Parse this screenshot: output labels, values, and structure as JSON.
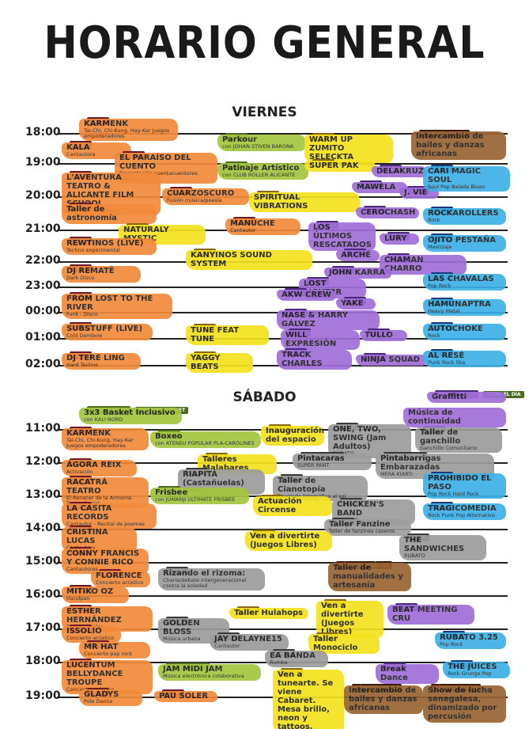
{
  "header": {
    "title": "HORARIO GENERAL"
  },
  "days": [
    {
      "name": "VIERNES",
      "hours": [
        "18:00",
        "19:00",
        "20:00",
        "21:00",
        "22:00",
        "23:00",
        "00:00",
        "01:00",
        "02:00"
      ],
      "events": [
        {
          "time": "17:30",
          "title": "KARMENK",
          "subtitle": "Tai-Chi, Chi-Kung, Hay-Kar Juegos empoderadores"
        },
        {
          "time": "18:00",
          "title": "KALA",
          "subtitle": "Cantautora"
        },
        {
          "time": "18:30",
          "title": "EL PARAÍSO DEL CUENTO",
          "subtitle": "Presentación cuentacuentores: Panocha"
        },
        {
          "time": "19:00",
          "title": "L'AVENTURA TEATRO & ALICANTE FILM SCHOOL",
          "subtitle": "Improvisación teatral"
        },
        {
          "time": "20:00",
          "title": "Taller de astronomía"
        },
        {
          "time": "19:30",
          "title": "CUARZOSCURO",
          "subtitle": "Fusión música/poesía"
        },
        {
          "time": "18:00",
          "title": "Parkour",
          "subtitle": "con JOHAN STIVEN BARONA"
        },
        {
          "time": "18:30",
          "title": "Patinaje Artístico",
          "subtitle": "con CLUB ROLLER ALICANTE"
        },
        {
          "time": "18:00",
          "title": "WARM UP ZUMITO SELECKTA"
        },
        {
          "time": "18:30",
          "title": "SUPER PAK"
        },
        {
          "time": "19:30",
          "title": "SPIRITUAL VIBRATIONS"
        },
        {
          "time": "VIERNES TARDE",
          "title": "Intercambio de bailes y danzas africanas"
        },
        {
          "time": "19:00",
          "title": "DELAKRUZ"
        },
        {
          "time": "19:25",
          "title": "MAWELA"
        },
        {
          "time": "19:30",
          "title": "J. VIE"
        },
        {
          "time": "19:00",
          "title": "CARI MAGIC SOUL",
          "subtitle": "Soul Pop Balada Blues"
        },
        {
          "time": "20:15",
          "title": "MANUCHE",
          "subtitle": "Cantautor"
        },
        {
          "time": "20:30",
          "title": "NATURALY MYSTIC"
        },
        {
          "time": "20:15",
          "title": "CEROCHASH"
        },
        {
          "time": "20:40",
          "title": "LOS ÚLTIMOS RESCATADOS"
        },
        {
          "time": "20:00",
          "title": "ROCKAROLLERS",
          "subtitle": "Rock"
        },
        {
          "time": "21:00",
          "title": "LURY"
        },
        {
          "time": "21:00",
          "title": "OJITO PESTAÑA",
          "subtitle": "Mestizaje"
        },
        {
          "time": "21:00",
          "title": "REWTINOS (LIVE)",
          "subtitle": "Techno experimental"
        },
        {
          "time": "21:30",
          "title": "KANYINOS SOUND SYSTEM"
        },
        {
          "time": "21:20",
          "title": "ARCHÉ"
        },
        {
          "time": "21:45",
          "title": "CHAMAN CHARRO"
        },
        {
          "time": "22:00",
          "title": "DJ REMATË",
          "subtitle": "Dark Disco"
        },
        {
          "time": "22:10",
          "title": "JOHN KARRA"
        },
        {
          "time": "22:00",
          "title": "LAS CHAVALAS",
          "subtitle": "Pop Rock"
        },
        {
          "time": "22:35",
          "title": "LOST LIGHT3R"
        },
        {
          "time": "23:00",
          "title": "FROM LOST TO THE RIVER",
          "subtitle": "Funk - Disco"
        },
        {
          "time": "23:00",
          "title": "AKW CREW"
        },
        {
          "time": "23:25",
          "title": "YAKE"
        },
        {
          "time": "23:00",
          "title": "HAMUNAPTRA",
          "subtitle": "Heavy Metal"
        },
        {
          "time": "23:50",
          "title": "NASE & HARRY GÁLVEZ"
        },
        {
          "time": "00:30",
          "title": "SUBSTUFF (LIVE)",
          "subtitle": "Cold Dembow"
        },
        {
          "time": "00:30",
          "title": "TUNE FEAT TUNE"
        },
        {
          "time": "00:25",
          "title": "WILL EXPRESIÓN"
        },
        {
          "time": "00:25",
          "title": "TULLO"
        },
        {
          "time": "00:00",
          "title": "AUTOCHOKE",
          "subtitle": "Rock"
        },
        {
          "time": "01:30",
          "title": "DJ TERE LING",
          "subtitle": "Hard Techno"
        },
        {
          "time": "01:30",
          "title": "YAGGY BEATS"
        },
        {
          "time": "01:05",
          "title": "TRACK CHARLES"
        },
        {
          "time": "01:15",
          "title": "NINJA SQUAD"
        },
        {
          "time": "01:00",
          "title": "AL RESÉ",
          "subtitle": "Punk Rock Ska"
        }
      ]
    },
    {
      "name": "SÁBADO",
      "hours": [
        "11:00",
        "12:00",
        "13:00",
        "14:00",
        "15:00",
        "16:00",
        "17:00",
        "18:00",
        "19:00"
      ],
      "events": [
        {
          "time": "10:00 - 13:00",
          "note": "PISTA DE BASKET",
          "title": "3x3 Basket Inclusivo",
          "subtitle": "con KALI NORD"
        },
        {
          "time": "11:00",
          "title": "KARMENK",
          "subtitle": "Tai-Chi, Chi-Kung, Hay-Kar Juegos empoderadores"
        },
        {
          "time": "11:00",
          "title": "Boxeo",
          "subtitle": "con ATENEU POPULAR PLA-CAROLINES"
        },
        {
          "time": "11:00",
          "title": "Inauguración del espacio"
        },
        {
          "time": "11:00",
          "title": "ONE, TWO, SWING (Jam Adultos)",
          "subtitle": "RUBATO"
        },
        {
          "time": "11:00",
          "title": "Taller de ganchillo",
          "subtitle": "Ganchillo Comunitario"
        },
        {
          "time": "10:00 - 15:00",
          "note": "TODO EL DÍA",
          "title": "Graffitti"
        },
        {
          "title": "Música de continuidad"
        },
        {
          "time": "11:45",
          "title": "ÁGORA REIX",
          "subtitle": "Activación"
        },
        {
          "time": "11:30",
          "title": "Talleres Malabares"
        },
        {
          "time": "11:00 - 14:00",
          "title": "Pintacaras",
          "subtitle": "SUPER PANT"
        },
        {
          "time": "11:00 - 19:00",
          "title": "Pintabarrigas Embarazadas",
          "subtitle": "MERA KIARTI"
        },
        {
          "time": "12:25",
          "title": "RACATRÁ TEATRO",
          "subtitle": "El Renacer de la Armonía: Teatro Social"
        },
        {
          "time": "12:00",
          "title": "RIAPITÁ (Castañuelas)",
          "subtitle": "RUBATO"
        },
        {
          "time": "12:00",
          "title": "Taller de Cianotopía",
          "subtitle": "Revelado fotográfico al sol"
        },
        {
          "time": "12:00",
          "title": "PROHIBIDO EL PASO",
          "subtitle": "Pop Rock Hard Rock"
        },
        {
          "time": "12:30",
          "title": "Frisbee",
          "subtitle": "con JUMANJI ULTIMATE FRISBEE"
        },
        {
          "time": "13:00",
          "title": "Actuación Circense"
        },
        {
          "time": "13:00",
          "title": "CHICKEN'S BAND",
          "subtitle": "RUBATO"
        },
        {
          "time": "13:10",
          "title": "LA CASITA RECORDS",
          "subtitle": "Cantautor - Recital de poemas"
        },
        {
          "time": "13:00",
          "title": "TRAGICOMEDIA",
          "subtitle": "Rock Punk Pop Alternativo"
        },
        {
          "time": "13:50",
          "title": "CRISTINA LUCAS",
          "subtitle": "Cantautora"
        },
        {
          "time": "13:30",
          "title": "Taller Fanzine",
          "subtitle": "Taller de fanzines caseros"
        },
        {
          "time": "14:00",
          "title": "Ven a divertirte (Juegos Libres)"
        },
        {
          "time": "14:00",
          "title": "THE SANDWICHES",
          "subtitle": "RUBATO"
        },
        {
          "time": "14:20",
          "title": "CONNY FRANCIS Y CONNIE RICO",
          "subtitle": "Cantautores"
        },
        {
          "time": "SÁBADO MAÑANA",
          "title": "Taller de manualidades y artesanía"
        },
        {
          "time": "15:05",
          "title": "FLORENCE",
          "subtitle": "Concierto acústico"
        },
        {
          "time": "15:00",
          "title": "Rizando el rizoma:",
          "subtitle": "Charla/debate intergeneracional contra la soledad"
        },
        {
          "time": "15:45",
          "title": "MITIKO OZ",
          "subtitle": "Handpan"
        },
        {
          "time": "16:15",
          "title": "ESTHER HERNÁNDEZ",
          "subtitle": "Taller de Salsa"
        },
        {
          "time": "16:00",
          "title": "Taller Hulahops"
        },
        {
          "time": "16:00",
          "title": "Ven a divertirte (Juegos Libres)"
        },
        {
          "time": "16:00",
          "title": "BEAT MEETING CRU"
        },
        {
          "time": "16:30",
          "title": "GOLDEN BLOSS",
          "subtitle": "Música urbana"
        },
        {
          "time": "16:50",
          "title": "ISSOLIO",
          "subtitle": "Concierto acústico"
        },
        {
          "time": "17:00",
          "title": "JAY DELAYNE15",
          "subtitle": "Cantautor"
        },
        {
          "time": "17:15",
          "title": "Taller Monociclo"
        },
        {
          "time": "17:00",
          "title": "RUBATO 3.25",
          "subtitle": "Pop Rock"
        },
        {
          "time": "17:20",
          "title": "MR HAT",
          "subtitle": "Concierto pop rock"
        },
        {
          "time": "17:30",
          "title": "EA BANDA",
          "subtitle": "Rumba"
        },
        {
          "time": "17:50",
          "title": "LUCENTUM BELLYDANCE TROUPE",
          "subtitle": "Concierto acústico"
        },
        {
          "time": "18:00 - 22:00",
          "title": "JAM MIDI JAM",
          "subtitle": "Música electrónica colaborativa"
        },
        {
          "time": "18:00",
          "title": "Ven a tunearte. Se viene Cabaret. Mesa brillo, neon y tattoos."
        },
        {
          "time": "18:00",
          "title": "Break Dance"
        },
        {
          "time": "18:00",
          "title": "THE JUICES",
          "subtitle": "Rock Grunge Pop"
        },
        {
          "time": "SÁBADO TARDE",
          "title": "Intercambio de bailes y danzas africanas"
        },
        {
          "time": "SÁBADO TARDE",
          "title": "Show de lucha senegalesa, dinamizado por percusión"
        },
        {
          "time": "18:50",
          "title": "GLADYS",
          "subtitle": "Pole Dance"
        },
        {
          "time": "18:30",
          "title": "PAU SOLER"
        }
      ]
    }
  ]
}
